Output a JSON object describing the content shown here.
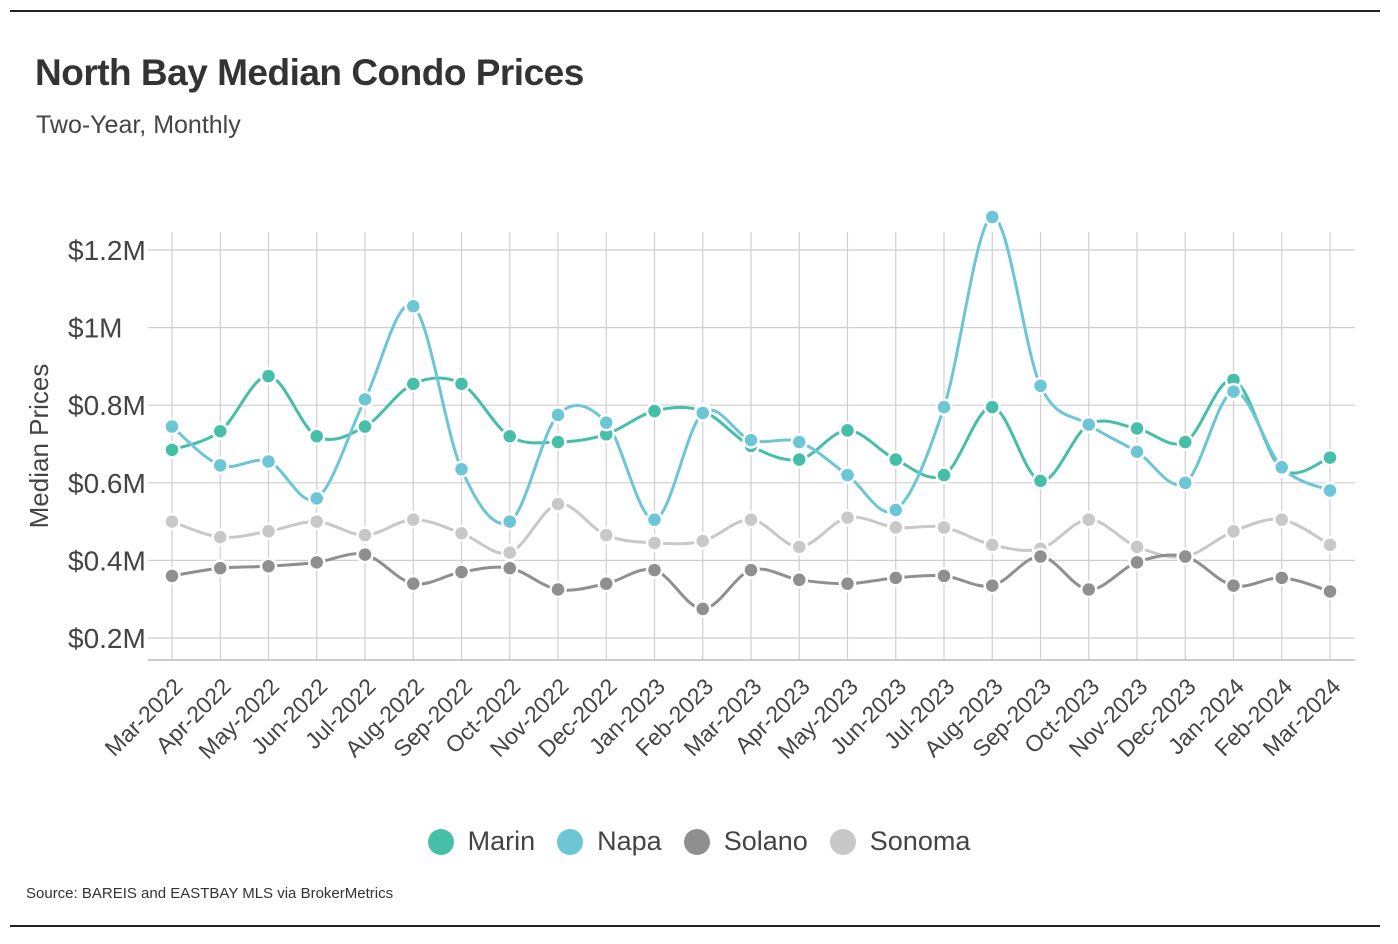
{
  "header": {
    "title": "North Bay Median Condo Prices",
    "subtitle": "Two-Year, Monthly"
  },
  "footer": {
    "source": "Source:  BAREIS and EASTBAY MLS via BrokerMetrics"
  },
  "colors": {
    "Marin": "#45bfa8",
    "Napa": "#6cc6d6",
    "Solano": "#8f8f8f",
    "Sonoma": "#c8c8c8",
    "grid": "#cfcfcf"
  },
  "chart_data": {
    "type": "line",
    "title": "North Bay Median Condo Prices",
    "subtitle": "Two-Year, Monthly",
    "xlabel": "",
    "ylabel": "Median Prices",
    "ylim": [
      0.15,
      1.25
    ],
    "yticks": [
      0.2,
      0.4,
      0.6,
      0.8,
      1.0,
      1.2
    ],
    "ytick_labels": [
      "$0.2M",
      "$0.4M",
      "$0.6M",
      "$0.8M",
      "$1M",
      "$1.2M"
    ],
    "grid": true,
    "legend_position": "bottom",
    "categories": [
      "Mar-2022",
      "Apr-2022",
      "May-2022",
      "Jun-2022",
      "Jul-2022",
      "Aug-2022",
      "Sep-2022",
      "Oct-2022",
      "Nov-2022",
      "Dec-2022",
      "Jan-2023",
      "Feb-2023",
      "Mar-2023",
      "Apr-2023",
      "May-2023",
      "Jun-2023",
      "Jul-2023",
      "Aug-2023",
      "Sep-2023",
      "Oct-2023",
      "Nov-2023",
      "Dec-2023",
      "Jan-2024",
      "Feb-2024",
      "Mar-2024"
    ],
    "series": [
      {
        "name": "Marin",
        "values": [
          0.685,
          0.733,
          0.875,
          0.72,
          0.745,
          0.855,
          0.855,
          0.72,
          0.705,
          0.725,
          0.785,
          0.785,
          0.695,
          0.66,
          0.735,
          0.66,
          0.62,
          0.795,
          0.605,
          0.75,
          0.74,
          0.705,
          0.865,
          0.635,
          0.665
        ]
      },
      {
        "name": "Napa",
        "values": [
          0.745,
          0.645,
          0.655,
          0.56,
          0.815,
          1.055,
          0.635,
          0.5,
          0.775,
          0.755,
          0.505,
          0.78,
          0.71,
          0.705,
          0.62,
          0.53,
          0.795,
          1.285,
          0.85,
          0.75,
          0.68,
          0.6,
          0.835,
          0.64,
          0.58
        ]
      },
      {
        "name": "Solano",
        "values": [
          0.36,
          0.38,
          0.385,
          0.395,
          0.415,
          0.34,
          0.37,
          0.38,
          0.325,
          0.34,
          0.375,
          0.275,
          0.375,
          0.35,
          0.34,
          0.355,
          0.36,
          0.335,
          0.41,
          0.325,
          0.395,
          0.41,
          0.335,
          0.355,
          0.32
        ]
      },
      {
        "name": "Sonoma",
        "values": [
          0.5,
          0.46,
          0.475,
          0.5,
          0.465,
          0.505,
          0.47,
          0.42,
          0.545,
          0.465,
          0.445,
          0.45,
          0.505,
          0.435,
          0.51,
          0.485,
          0.485,
          0.44,
          0.43,
          0.505,
          0.435,
          0.41,
          0.475,
          0.505,
          0.44
        ]
      }
    ]
  }
}
